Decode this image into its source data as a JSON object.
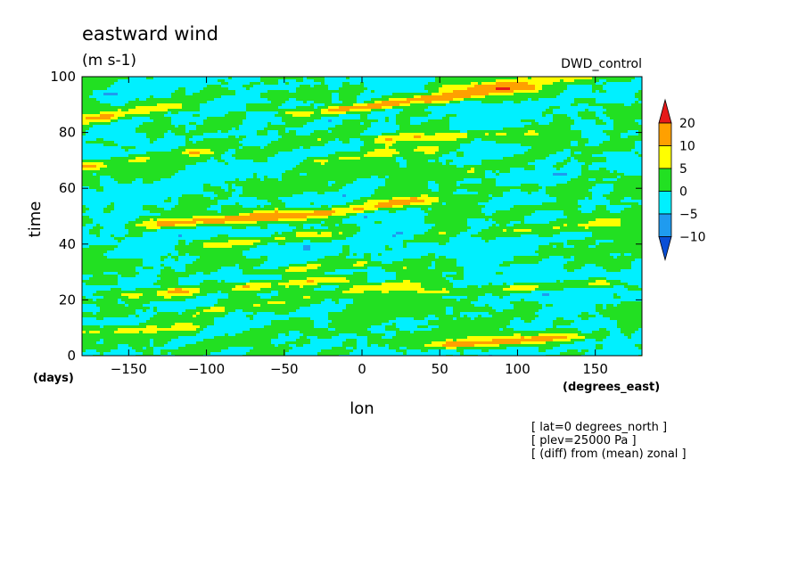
{
  "chart_data": {
    "type": "heatmap",
    "title": "eastward wind",
    "subtitle": "(m s-1)",
    "dataset_label": "DWD_control",
    "xlabel": "lon",
    "xunits": "(degrees_east)",
    "ylabel": "time",
    "yunits": "(days)",
    "xlim": [
      -180,
      180
    ],
    "ylim": [
      0,
      100
    ],
    "xticks": [
      -150,
      -100,
      -50,
      0,
      50,
      100,
      150
    ],
    "yticks": [
      0,
      20,
      40,
      60,
      80,
      100
    ],
    "colorbar": {
      "levels": [
        -10,
        -5,
        0,
        5,
        10,
        20
      ],
      "labels": [
        "20",
        "10",
        "5",
        "0",
        "-5",
        "-10"
      ],
      "colors": [
        "#0a4fd6",
        "#1f9bef",
        "#00f0ff",
        "#22e022",
        "#ffff00",
        "#ffa000",
        "#e61919"
      ],
      "extend": "both"
    },
    "notes": [
      "[ lat=0 degrees_north ]",
      "[ plev=25000 Pa ]",
      "[ (diff) from (mean) zonal ]"
    ],
    "field_description": "Hovmoller (lon vs time) of zonal-mean anomaly; dominantly -5..5 m/s with eastward-propagating positive streaks reaching 10-20 m/s"
  }
}
